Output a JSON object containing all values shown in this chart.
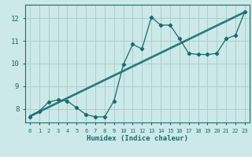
{
  "xlabel": "Humidex (Indice chaleur)",
  "bg_color": "#cce8e8",
  "line_color": "#1a6b6b",
  "grid_color": "#aacfcf",
  "xlim": [
    -0.5,
    23.5
  ],
  "ylim": [
    7.4,
    12.6
  ],
  "yticks": [
    8,
    9,
    10,
    11,
    12
  ],
  "xticks": [
    0,
    1,
    2,
    3,
    4,
    5,
    6,
    7,
    8,
    9,
    10,
    11,
    12,
    13,
    14,
    15,
    16,
    17,
    18,
    19,
    20,
    21,
    22,
    23
  ],
  "line1_x": [
    0,
    1,
    2,
    3,
    4,
    5,
    6,
    7,
    8,
    9,
    10,
    11,
    12,
    13,
    14,
    15,
    16,
    17,
    18,
    19,
    20,
    21,
    22,
    23
  ],
  "line1_y": [
    7.65,
    7.9,
    8.3,
    8.4,
    8.35,
    8.05,
    7.75,
    7.65,
    7.65,
    8.35,
    9.95,
    10.85,
    10.65,
    12.05,
    11.7,
    11.7,
    11.1,
    10.45,
    10.4,
    10.4,
    10.45,
    11.1,
    11.25,
    12.3
  ],
  "line2_x": [
    0,
    23
  ],
  "line2_y": [
    7.7,
    12.3
  ],
  "line3_x": [
    0,
    23
  ],
  "line3_y": [
    7.65,
    12.25
  ]
}
